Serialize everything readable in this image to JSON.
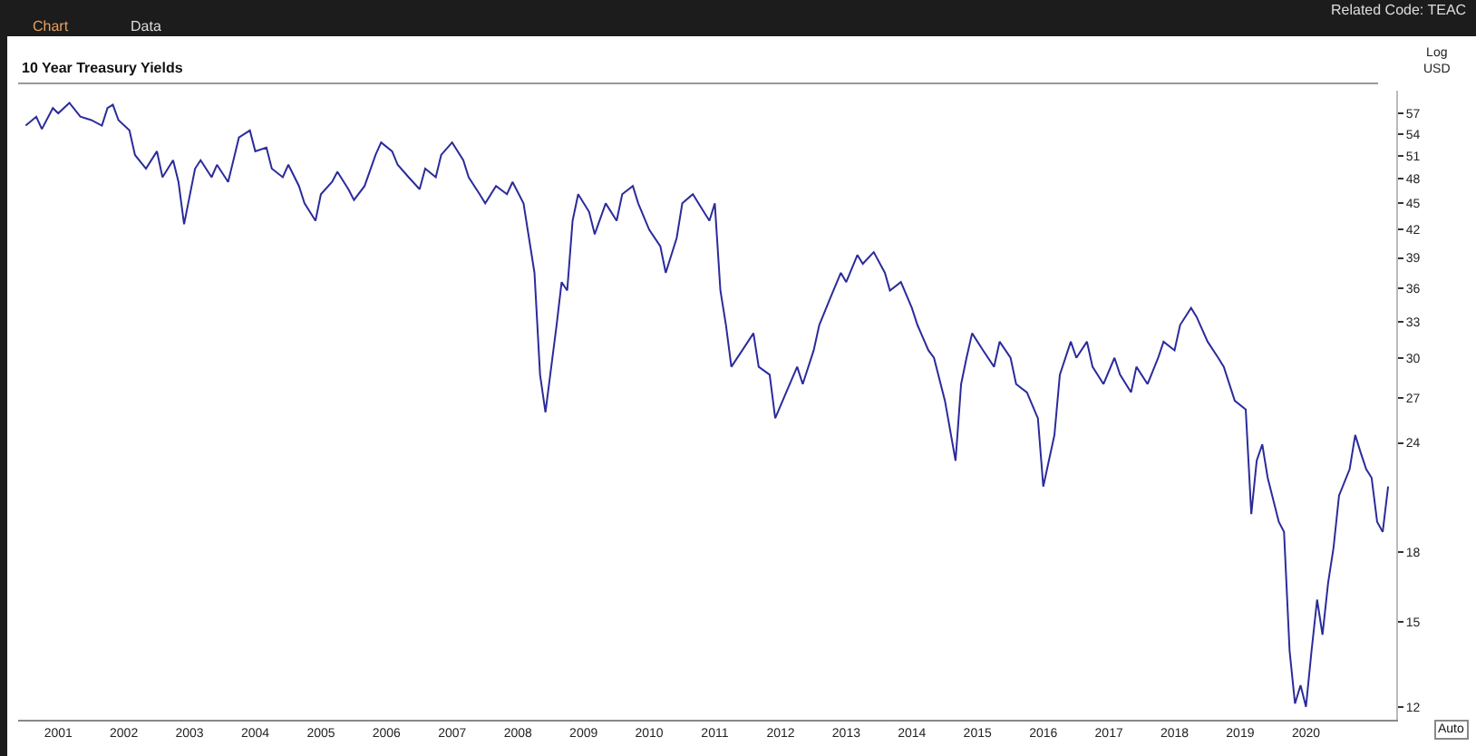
{
  "chart_data": {
    "type": "line",
    "title": "10 Year Treasury Yields",
    "ylabel": "Log USD",
    "annotations": [
      "Chart",
      "Data",
      "Related Code: TEAC",
      "Auto"
    ],
    "x": [
      "2001-01",
      "2001-03",
      "2001-04",
      "2001-06",
      "2001-07",
      "2001-09",
      "2001-11",
      "2002-01",
      "2002-03",
      "2002-04",
      "2002-05",
      "2002-06",
      "2002-08",
      "2002-09",
      "2002-11",
      "2003-01",
      "2003-02",
      "2003-04",
      "2003-05",
      "2003-06",
      "2003-08",
      "2003-09",
      "2003-11",
      "2003-12",
      "2004-02",
      "2004-04",
      "2004-06",
      "2004-07",
      "2004-09",
      "2004-10",
      "2004-12",
      "2005-01",
      "2005-03",
      "2005-04",
      "2005-06",
      "2005-07",
      "2005-09",
      "2005-10",
      "2005-12",
      "2006-01",
      "2006-03",
      "2006-05",
      "2006-06",
      "2006-08",
      "2006-09",
      "2006-11",
      "2007-01",
      "2007-02",
      "2007-04",
      "2007-05",
      "2007-07",
      "2007-09",
      "2007-10",
      "2007-12",
      "2008-01",
      "2008-03",
      "2008-05",
      "2008-06",
      "2008-08",
      "2008-10",
      "2008-11",
      "2008-12",
      "2009-02",
      "2009-03",
      "2009-04",
      "2009-05",
      "2009-06",
      "2009-08",
      "2009-09",
      "2009-11",
      "2010-01",
      "2010-02",
      "2010-04",
      "2010-05",
      "2010-07",
      "2010-09",
      "2010-10",
      "2010-12",
      "2011-01",
      "2011-03",
      "2011-05",
      "2011-06",
      "2011-07",
      "2011-08",
      "2011-09",
      "2011-10",
      "2011-12",
      "2012-02",
      "2012-03",
      "2012-05",
      "2012-06",
      "2012-08",
      "2012-10",
      "2012-11",
      "2013-01",
      "2013-02",
      "2013-04",
      "2013-06",
      "2013-07",
      "2013-09",
      "2013-10",
      "2013-12",
      "2014-02",
      "2014-03",
      "2014-05",
      "2014-07",
      "2014-08",
      "2014-10",
      "2014-11",
      "2015-01",
      "2015-03",
      "2015-04",
      "2015-05",
      "2015-06",
      "2015-08",
      "2015-10",
      "2015-11",
      "2016-01",
      "2016-02",
      "2016-04",
      "2016-06",
      "2016-07",
      "2016-09",
      "2016-10",
      "2016-12",
      "2017-01",
      "2017-03",
      "2017-04",
      "2017-06",
      "2017-08",
      "2017-09",
      "2017-11",
      "2017-12",
      "2018-02",
      "2018-04",
      "2018-05",
      "2018-07",
      "2018-08",
      "2018-10",
      "2018-11",
      "2019-01",
      "2019-03",
      "2019-04",
      "2019-06",
      "2019-08",
      "2019-09",
      "2019-10",
      "2019-11",
      "2019-12",
      "2020-02",
      "2020-03",
      "2020-04",
      "2020-05",
      "2020-06",
      "2020-07",
      "2020-08",
      "2020-09",
      "2020-10",
      "2020-11",
      "2020-12",
      "2021-01",
      "2021-03",
      "2021-04",
      "2021-05",
      "2021-06",
      "2021-07",
      "2021-08",
      "2021-09",
      "2021-10"
    ],
    "series": [
      {
        "color": "#2b2b9c",
        "values": [
          55.2,
          56.5,
          54.7,
          57.8,
          57.0,
          58.6,
          56.5,
          56.0,
          55.2,
          57.8,
          58.3,
          56.0,
          54.5,
          51.1,
          49.3,
          51.6,
          48.2,
          50.4,
          47.6,
          42.6,
          49.3,
          50.4,
          48.2,
          49.8,
          47.6,
          53.5,
          54.5,
          51.6,
          52.1,
          49.3,
          48.2,
          49.8,
          47.1,
          45.0,
          43.0,
          46.1,
          47.6,
          48.9,
          46.7,
          45.4,
          47.1,
          51.1,
          52.8,
          51.6,
          49.8,
          48.2,
          46.7,
          49.3,
          48.2,
          51.1,
          52.8,
          50.4,
          48.2,
          46.1,
          45.0,
          47.1,
          46.1,
          47.6,
          45.0,
          37.5,
          28.7,
          26.0,
          32.7,
          36.6,
          35.8,
          43.0,
          46.1,
          44.0,
          41.5,
          45.0,
          43.0,
          46.1,
          47.1,
          45.0,
          42.0,
          40.2,
          37.5,
          41.1,
          45.0,
          46.1,
          44.0,
          43.0,
          45.0,
          35.8,
          32.7,
          29.3,
          30.6,
          32.0,
          29.3,
          28.7,
          25.6,
          27.4,
          29.3,
          28.0,
          30.6,
          32.7,
          35.0,
          37.5,
          36.6,
          39.3,
          38.4,
          39.6,
          37.5,
          35.8,
          36.6,
          34.2,
          32.7,
          30.6,
          30.0,
          26.8,
          22.9,
          28.0,
          30.0,
          32.0,
          30.6,
          29.3,
          31.3,
          30.0,
          28.0,
          27.4,
          25.6,
          21.4,
          24.5,
          28.7,
          31.3,
          30.0,
          31.3,
          29.3,
          28.0,
          30.0,
          28.7,
          27.4,
          29.3,
          28.0,
          30.0,
          31.3,
          30.6,
          32.7,
          34.2,
          33.4,
          31.3,
          30.0,
          29.3,
          26.8,
          26.2,
          19.9,
          22.9,
          23.9,
          21.9,
          19.5,
          19.0,
          13.9,
          12.1,
          12.7,
          12.0,
          13.9,
          15.9,
          14.5,
          16.6,
          18.2,
          20.9,
          22.4,
          24.5,
          23.4,
          22.4,
          21.9,
          19.5,
          19.0,
          21.4
        ]
      }
    ],
    "ylim": [
      11.6,
      60.5
    ],
    "yticks": [
      12,
      15,
      18,
      24,
      27,
      30,
      33,
      36,
      39,
      42,
      45,
      48,
      51,
      54,
      57
    ],
    "xlim": [
      "2000-11-20",
      "2021-11-15"
    ],
    "xticks": [
      {
        "value": "2001-07-01",
        "label": "2001"
      },
      {
        "value": "2002-07-01",
        "label": "2002"
      },
      {
        "value": "2003-07-01",
        "label": "2003"
      },
      {
        "value": "2004-07-01",
        "label": "2004"
      },
      {
        "value": "2005-07-01",
        "label": "2005"
      },
      {
        "value": "2006-07-01",
        "label": "2006"
      },
      {
        "value": "2007-07-01",
        "label": "2007"
      },
      {
        "value": "2008-07-01",
        "label": "2008"
      },
      {
        "value": "2009-07-01",
        "label": "2009"
      },
      {
        "value": "2010-07-01",
        "label": "2010"
      },
      {
        "value": "2011-07-01",
        "label": "2011"
      },
      {
        "value": "2012-07-01",
        "label": "2012"
      },
      {
        "value": "2013-07-01",
        "label": "2013"
      },
      {
        "value": "2014-07-01",
        "label": "2014"
      },
      {
        "value": "2015-07-01",
        "label": "2015"
      },
      {
        "value": "2016-07-01",
        "label": "2016"
      },
      {
        "value": "2017-07-01",
        "label": "2017"
      },
      {
        "value": "2018-07-01",
        "label": "2018"
      },
      {
        "value": "2019-07-01",
        "label": "2019"
      },
      {
        "value": "2020-07-01",
        "label": "2020"
      }
    ],
    "log": "y",
    "grid": false,
    "marker": "none",
    "line_style": "solid"
  }
}
